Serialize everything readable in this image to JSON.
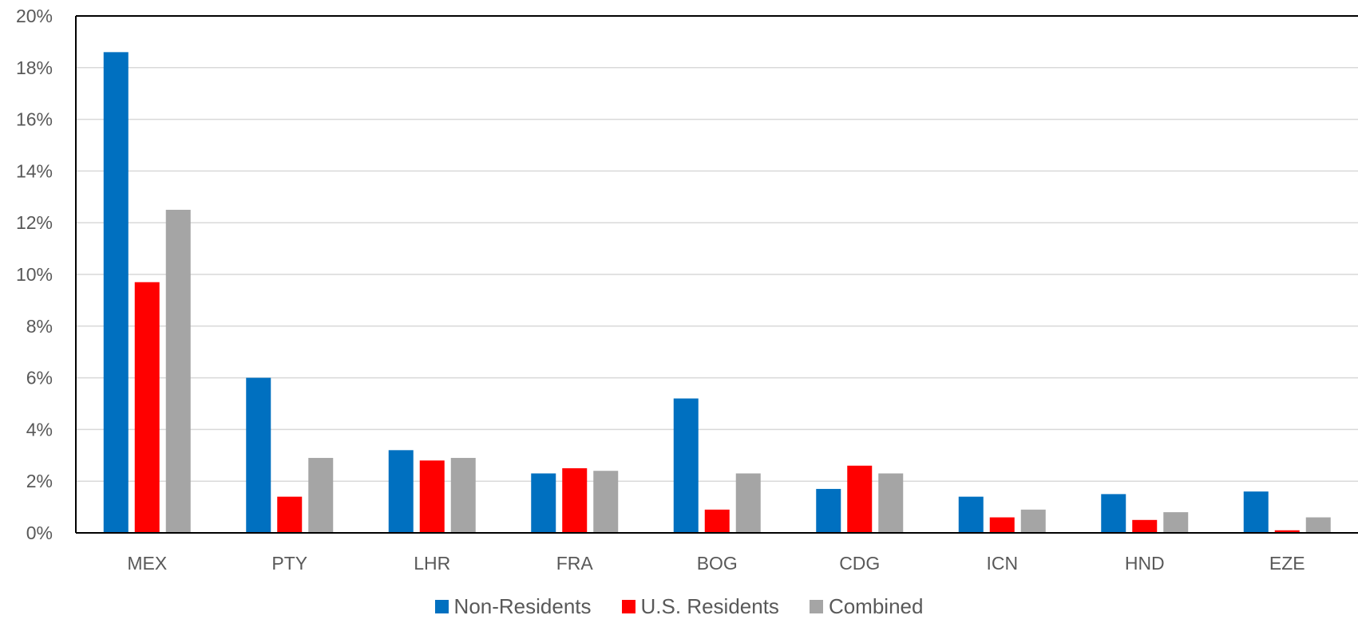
{
  "chart_data": {
    "type": "bar",
    "categories": [
      "MEX",
      "PTY",
      "LHR",
      "FRA",
      "BOG",
      "CDG",
      "ICN",
      "HND",
      "EZE"
    ],
    "series": [
      {
        "name": "Non-Residents",
        "color": "#0070C0",
        "values": [
          18.6,
          6.0,
          3.2,
          2.3,
          5.2,
          1.7,
          1.4,
          1.5,
          1.6
        ]
      },
      {
        "name": "U.S. Residents",
        "color": "#FF0000",
        "values": [
          9.7,
          1.4,
          2.8,
          2.5,
          0.9,
          2.6,
          0.6,
          0.5,
          0.1
        ]
      },
      {
        "name": "Combined",
        "color": "#A5A5A5",
        "values": [
          12.5,
          2.9,
          2.9,
          2.4,
          2.3,
          2.3,
          0.9,
          0.8,
          0.6
        ]
      }
    ],
    "yticks": [
      "0%",
      "2%",
      "4%",
      "6%",
      "8%",
      "10%",
      "12%",
      "14%",
      "16%",
      "18%",
      "20%"
    ],
    "ylim": [
      0,
      20
    ],
    "y_unit": "%",
    "grid": true,
    "legend_position": "bottom"
  }
}
